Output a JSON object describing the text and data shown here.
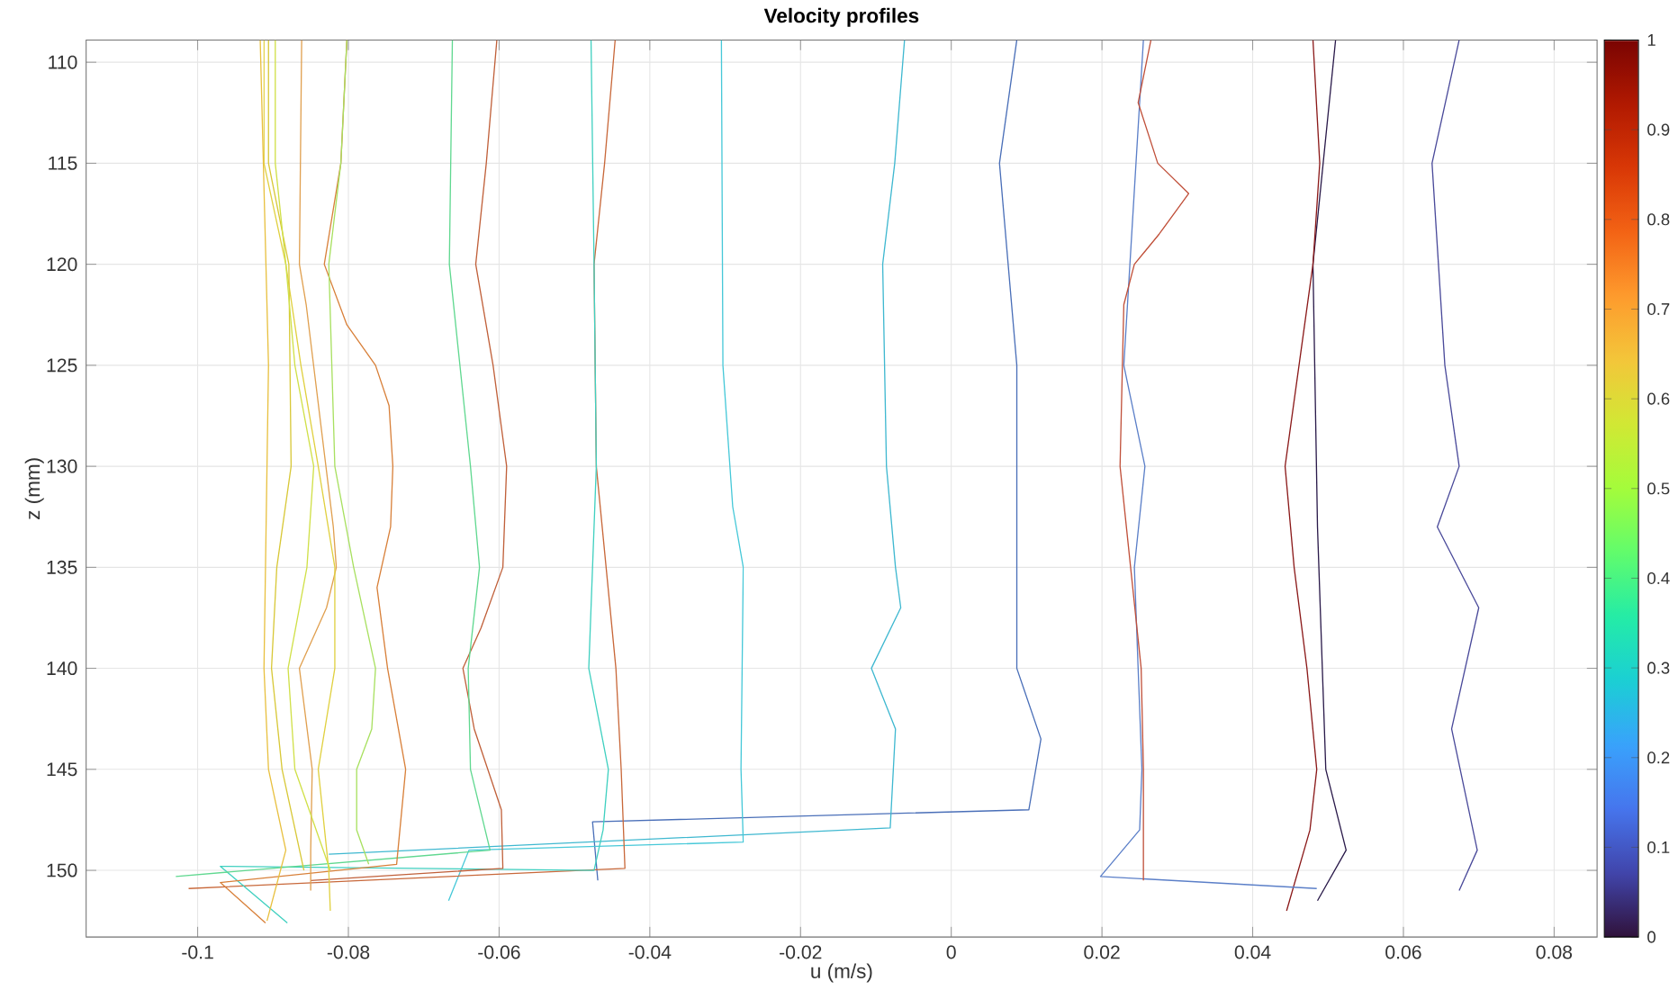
{
  "chart_data": {
    "type": "line",
    "title": "Velocity profiles",
    "xlabel": "u (m/s)",
    "ylabel": "z (mm)",
    "xlim": [
      -0.1148,
      0.0857
    ],
    "ylim": [
      153.3,
      108.9
    ],
    "xticks": [
      -0.1,
      -0.08,
      -0.06,
      -0.04,
      -0.02,
      0,
      0.02,
      0.04,
      0.06,
      0.08
    ],
    "yticks": [
      110,
      115,
      120,
      125,
      130,
      135,
      140,
      145,
      150
    ],
    "clim": [
      0,
      1
    ],
    "cticks": [
      0,
      0.1,
      0.2,
      0.3,
      0.4,
      0.5,
      0.6,
      0.7,
      0.8,
      0.9,
      1
    ],
    "grid": true,
    "series": [
      {
        "color": "#4a4a9a",
        "x": [
          0.0674,
          0.0638,
          0.0655,
          0.0674,
          0.0645,
          0.07,
          0.0664,
          0.0698,
          0.0674
        ],
        "values": [
          108.9,
          115,
          125,
          130,
          133,
          137,
          143,
          149,
          151
        ]
      },
      {
        "color": "#2a1a4a",
        "x": [
          0.051,
          0.048,
          0.0486,
          0.0497,
          0.0524,
          0.0486
        ],
        "values": [
          108.9,
          120,
          133,
          145,
          149,
          151.5
        ]
      },
      {
        "color": "#8b1a1a",
        "x": [
          0.048,
          0.0489,
          0.048,
          0.0443,
          0.0455,
          0.0472,
          0.0485,
          0.0476,
          0.0445
        ],
        "values": [
          108.9,
          115,
          120,
          130,
          135,
          140,
          145,
          148,
          152
        ]
      },
      {
        "color": "#5b7fc8",
        "x": [
          0.0255,
          0.0229,
          0.0257,
          0.0243,
          0.0253,
          0.025,
          0.0198,
          0.0485
        ],
        "values": [
          108.9,
          125,
          130,
          135,
          145,
          148,
          150.3,
          150.9
        ]
      },
      {
        "color": "#c0503a",
        "x": [
          0.0265,
          0.0248,
          0.0274,
          0.0315,
          0.0276,
          0.0243,
          0.0229,
          0.0224,
          0.0238,
          0.0252,
          0.0255,
          0.0255
        ],
        "values": [
          108.9,
          112,
          115,
          116.5,
          118.5,
          120,
          122,
          130,
          135,
          140,
          145,
          150.5
        ]
      },
      {
        "color": "#4a6fb8",
        "x": [
          0.0087,
          0.0064,
          0.0087,
          0.0087,
          0.0119,
          0.0103,
          -0.0476,
          -0.0469
        ],
        "values": [
          108.9,
          115,
          125,
          140,
          143.5,
          147,
          147.6,
          150.5
        ]
      },
      {
        "color": "#3fb8d0",
        "x": [
          -0.0062,
          -0.0075,
          -0.0091,
          -0.0086,
          -0.0074,
          -0.0067,
          -0.0106,
          -0.0074,
          -0.0081,
          -0.0826
        ],
        "values": [
          108.9,
          115,
          120,
          130,
          135,
          137,
          140,
          143,
          147.9,
          149.2
        ]
      },
      {
        "color": "#46c8d8",
        "x": [
          -0.0305,
          -0.0303,
          -0.029,
          -0.0276,
          -0.0279,
          -0.0276,
          -0.064,
          -0.0667
        ],
        "values": [
          108.9,
          125,
          132,
          135,
          145,
          148.6,
          149,
          151.5
        ]
      },
      {
        "color": "#c8683a",
        "x": [
          -0.0446,
          -0.046,
          -0.0474,
          -0.0471,
          -0.0445,
          -0.0438,
          -0.0433,
          -0.1012
        ],
        "values": [
          108.9,
          115,
          120,
          130,
          140,
          145,
          149.9,
          150.9
        ]
      },
      {
        "color": "#40d0c0",
        "x": [
          -0.0478,
          -0.0474,
          -0.0471,
          -0.0481,
          -0.0455,
          -0.0462,
          -0.0474,
          -0.097,
          -0.0881
        ],
        "values": [
          108.9,
          120,
          130,
          140,
          145,
          148,
          150,
          149.8,
          152.6
        ]
      },
      {
        "color": "#c0603a",
        "x": [
          -0.0603,
          -0.0617,
          -0.0631,
          -0.0608,
          -0.059,
          -0.0595,
          -0.0624,
          -0.0648,
          -0.0633,
          -0.0597,
          -0.0595,
          -0.085
        ],
        "values": [
          108.9,
          115,
          120,
          125,
          130,
          135,
          138,
          140,
          143,
          147,
          149.9,
          150.5
        ]
      },
      {
        "color": "#60d890",
        "x": [
          -0.0662,
          -0.0666,
          -0.0638,
          -0.0626,
          -0.0641,
          -0.0638,
          -0.0612,
          -0.1029
        ],
        "values": [
          108.9,
          120,
          130,
          135,
          140,
          145,
          149,
          150.3
        ]
      },
      {
        "color": "#d8803a",
        "x": [
          -0.0802,
          -0.081,
          -0.0832,
          -0.0802,
          -0.0764,
          -0.0746,
          -0.0741,
          -0.0744,
          -0.0762,
          -0.0748,
          -0.0724,
          -0.0736,
          -0.097,
          -0.091
        ],
        "values": [
          108.9,
          115,
          120,
          123,
          125,
          127,
          130,
          133,
          136,
          140,
          145,
          149.7,
          150.6,
          152.6
        ]
      },
      {
        "color": "#a8e060",
        "x": [
          -0.0802,
          -0.081,
          -0.0826,
          -0.0818,
          -0.0793,
          -0.0764,
          -0.0769,
          -0.0789,
          -0.0789,
          -0.0773
        ],
        "values": [
          108.9,
          115,
          120,
          130,
          135,
          140,
          143,
          145,
          148,
          149.7
        ]
      },
      {
        "color": "#e0a050",
        "x": [
          -0.0862,
          -0.0865,
          -0.0856,
          -0.082,
          -0.0816,
          -0.0829,
          -0.0865,
          -0.0848,
          -0.085,
          -0.085
        ],
        "values": [
          108.9,
          120,
          122,
          133,
          135,
          137,
          140,
          145,
          149,
          151
        ]
      },
      {
        "color": "#e0d040",
        "x": [
          -0.0912,
          -0.0912,
          -0.0883,
          -0.0863,
          -0.084,
          -0.0818,
          -0.0818,
          -0.084,
          -0.0826,
          -0.0824
        ],
        "values": [
          108.9,
          115,
          120,
          125,
          130,
          135,
          140,
          145,
          150,
          152
        ]
      },
      {
        "color": "#d8c838",
        "x": [
          -0.0906,
          -0.0906,
          -0.0879,
          -0.0876,
          -0.0895,
          -0.0902,
          -0.0888,
          -0.0859
        ],
        "values": [
          108.9,
          115,
          120,
          130,
          135,
          140,
          145,
          150
        ]
      },
      {
        "color": "#d0e048",
        "x": [
          -0.0897,
          -0.0897,
          -0.0883,
          -0.0871,
          -0.0846,
          -0.0855,
          -0.088,
          -0.0871,
          -0.0824
        ],
        "values": [
          108.9,
          115,
          120,
          125,
          130,
          135,
          140,
          145,
          150
        ]
      },
      {
        "color": "#e8c040",
        "x": [
          -0.0917,
          -0.0906,
          -0.091,
          -0.0912,
          -0.0906,
          -0.0883,
          -0.0908
        ],
        "values": [
          108.9,
          125,
          135,
          140,
          145,
          149,
          152.5
        ]
      }
    ]
  }
}
